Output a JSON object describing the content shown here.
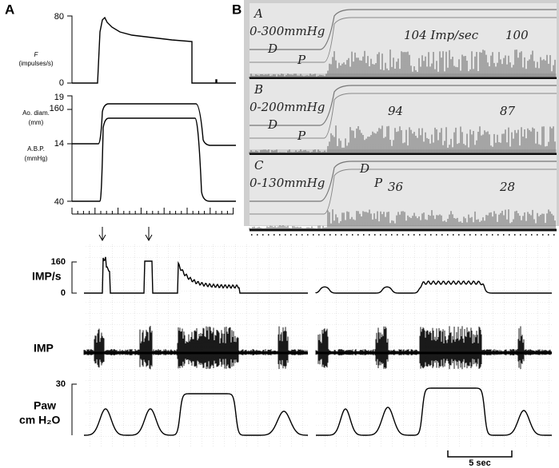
{
  "panel_a": {
    "label": "A",
    "plots": [
      {
        "label_lines": [
          "F",
          "(impulses/s)"
        ],
        "ticks": [
          "80",
          "0"
        ]
      },
      {
        "label_lines": [
          "Ao. diam.",
          "(mm)"
        ],
        "ticks": [
          "19",
          "14"
        ]
      },
      {
        "label_lines": [
          "A.B.P.",
          "(mmHg)"
        ],
        "ticks": [
          "160",
          "40"
        ]
      }
    ]
  },
  "panel_b": {
    "label": "B",
    "strips": [
      {
        "letter": "A",
        "range": "0-300mmHg",
        "d": "D",
        "p": "P",
        "rates": [
          "104 Imp/sec",
          "100"
        ]
      },
      {
        "letter": "B",
        "range": "0-200mmHg",
        "d": "D",
        "p": "P",
        "rates": [
          "94",
          "87"
        ]
      },
      {
        "letter": "C",
        "range": "0-130mmHg",
        "d": "D",
        "p": "P",
        "rates": [
          "36",
          "28"
        ]
      }
    ]
  },
  "bottom": {
    "rows": [
      {
        "label_lines": [
          "IMP/s"
        ],
        "ticks": [
          "160",
          "0"
        ]
      },
      {
        "label_lines": [
          "IMP"
        ]
      },
      {
        "label_lines": [
          "Paw",
          "cm H₂O"
        ],
        "ticks": [
          "30"
        ]
      }
    ],
    "scale_bar": "5 sec"
  }
}
